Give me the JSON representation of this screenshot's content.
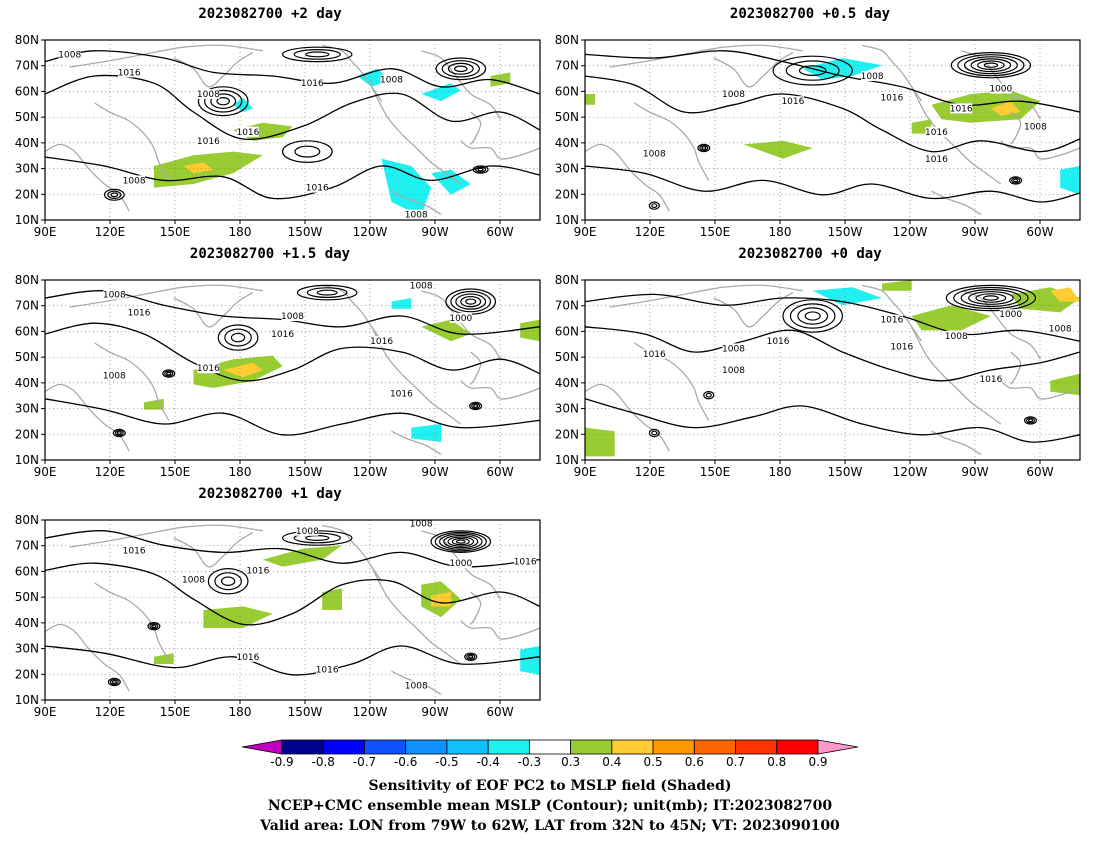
{
  "panels": [
    {
      "id": "p2",
      "title": "2023082700  +2 day"
    },
    {
      "id": "p05",
      "title": "2023082700  +0.5 day"
    },
    {
      "id": "p15",
      "title": "2023082700  +1.5 day"
    },
    {
      "id": "p0",
      "title": "2023082700  +0 day"
    },
    {
      "id": "p1",
      "title": "2023082700  +1 day"
    }
  ],
  "axes": {
    "lon_labels": [
      "90E",
      "120E",
      "150E",
      "180",
      "150W",
      "120W",
      "90W",
      "60W"
    ],
    "lat_labels": [
      "10N",
      "20N",
      "30N",
      "40N",
      "50N",
      "60N",
      "70N",
      "80N"
    ]
  },
  "contour_labels": {
    "p2": [
      "1008",
      "1016",
      "1016",
      "1008",
      "1008",
      "1016",
      "1016",
      "1016",
      "1008",
      "1008"
    ],
    "p05": [
      "1008",
      "1008",
      "1008",
      "1016",
      "1016",
      "1000",
      "1016",
      "1008",
      "1016",
      "1016"
    ],
    "p15": [
      "1008",
      "1016",
      "1008",
      "1008",
      "1016",
      "1016",
      "1000",
      "1016",
      "1016",
      "1008"
    ],
    "p0": [
      "1008",
      "1016",
      "1016",
      "1008",
      "1016",
      "1000",
      "1008",
      "1016",
      "1016",
      "1008"
    ],
    "p1": [
      "1008",
      "1016",
      "1008",
      "1016",
      "1016",
      "1016",
      "1000",
      "1016",
      "1008",
      "1008"
    ]
  },
  "colorbar": {
    "labels": [
      "-0.9",
      "-0.8",
      "-0.7",
      "-0.6",
      "-0.5",
      "-0.4",
      "-0.3",
      "0.3",
      "0.4",
      "0.5",
      "0.6",
      "0.7",
      "0.8",
      "0.9"
    ],
    "colors": [
      "#c000c0",
      "#000090",
      "#0000ff",
      "#1050ff",
      "#1090ff",
      "#10c0ff",
      "#20f0f0",
      "#ffffff",
      "#99cc33",
      "#ffcc33",
      "#ff9900",
      "#ff6600",
      "#ff3300",
      "#ff0000",
      "#ff99cc"
    ]
  },
  "captions": {
    "line1": "Sensitivity of EOF PC2 to MSLP field (Shaded)",
    "line2": "NCEP+CMC ensemble mean MSLP (Contour); unit(mb); IT:2023082700",
    "line3": "Valid area: LON from 79W to 62W, LAT from 32N to 45N; VT: 2023090100"
  }
}
